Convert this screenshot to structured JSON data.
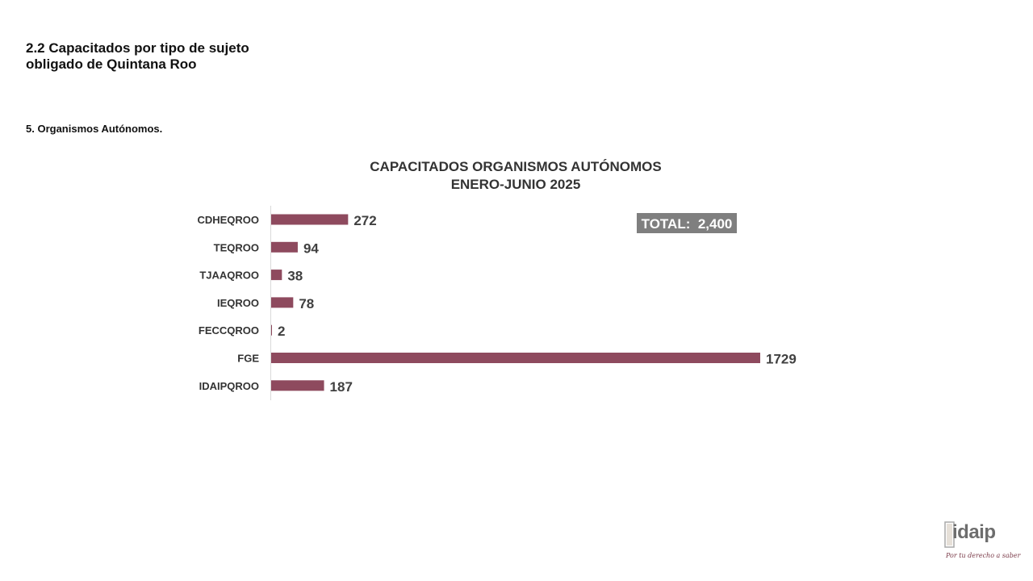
{
  "page": {
    "section_title_line1": "2.2 Capacitados por tipo de sujeto",
    "section_title_line2": "obligado de Quintana Roo",
    "subsection": "5. Organismos Autónomos."
  },
  "chart_data": {
    "type": "bar",
    "orientation": "horizontal",
    "title_line1": "CAPACITADOS ORGANISMOS AUTÓNOMOS",
    "title_line2": "ENERO-JUNIO 2025",
    "categories": [
      "CDHEQROO",
      "TEQROO",
      "TJAAQROO",
      "IEQROO",
      "FECCQROO",
      "FGE",
      "IDAIPQROO"
    ],
    "values": [
      272,
      94,
      38,
      78,
      2,
      1729,
      187
    ],
    "xlim": [
      0,
      1729
    ],
    "grid": false,
    "legend": "none",
    "bar_color": "#8e4a5e",
    "total_label": "TOTAL:  2,400",
    "total_box_color": "#7f7f7f"
  },
  "logo": {
    "wordmark": "idaip",
    "tagline": "Por tu derecho a saber",
    "icon": "idaip-logo-icon"
  }
}
